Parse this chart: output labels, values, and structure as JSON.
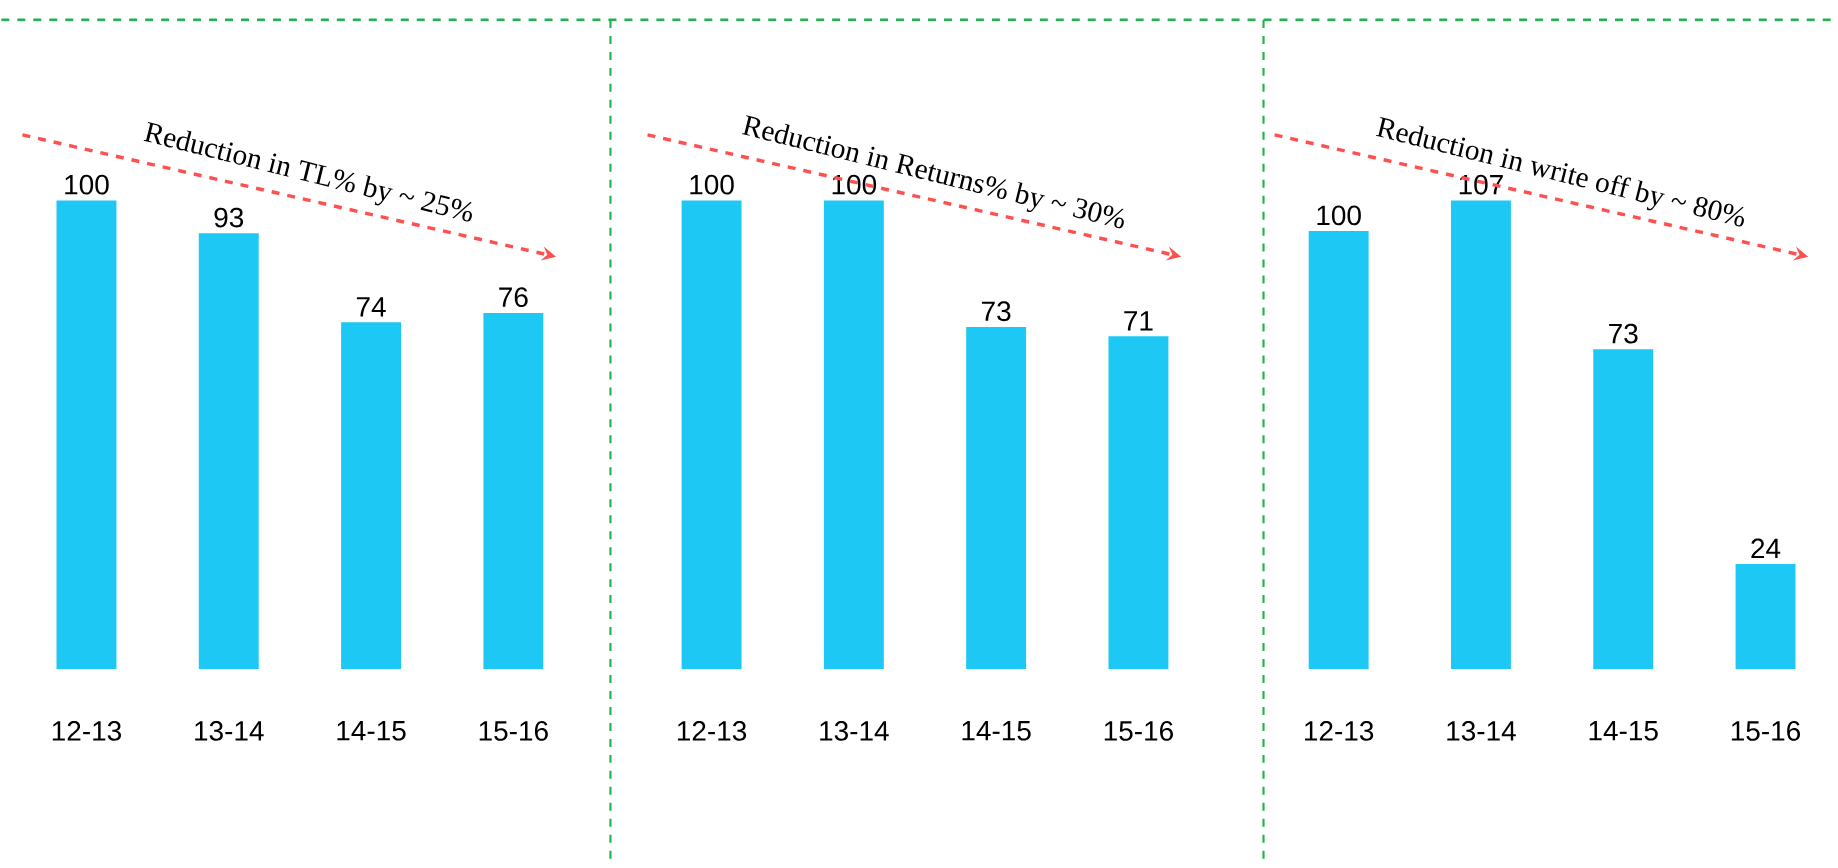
{
  "chart_data": [
    {
      "type": "bar",
      "categories": [
        "12-13",
        "13-14",
        "14-15",
        "15-16"
      ],
      "values": [
        100,
        93,
        74,
        76
      ],
      "color": "#1ec8f5",
      "data_labels": true,
      "annotations": [
        "Reduction in TL% by ~ 25%"
      ]
    },
    {
      "type": "bar",
      "categories": [
        "12-13",
        "13-14",
        "14-15",
        "15-16"
      ],
      "values": [
        100,
        100,
        73,
        71
      ],
      "color": "#1ec8f5",
      "data_labels": true,
      "annotations": [
        "Reduction in Returns% by ~ 30%"
      ]
    },
    {
      "type": "bar",
      "categories": [
        "12-13",
        "13-14",
        "14-15",
        "15-16"
      ],
      "values": [
        100,
        107,
        73,
        24
      ],
      "color": "#1ec8f5",
      "data_labels": true,
      "annotations": [
        "Reduction in write off by ~ 80%"
      ]
    }
  ]
}
